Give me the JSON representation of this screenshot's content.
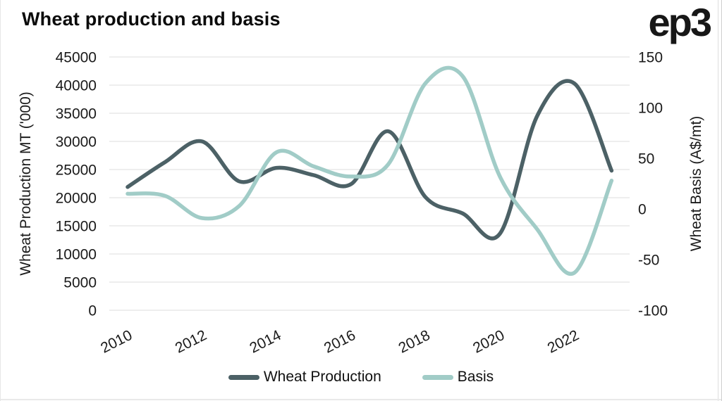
{
  "brand": {
    "logo": "ep3"
  },
  "chart_data": {
    "type": "line",
    "title": "Wheat production and basis",
    "x": [
      2010,
      2011,
      2012,
      2013,
      2014,
      2015,
      2016,
      2017,
      2018,
      2019,
      2020,
      2021,
      2022,
      2023
    ],
    "x_tick_years": [
      2010,
      2012,
      2014,
      2016,
      2018,
      2020,
      2022
    ],
    "left_axis": {
      "label": "Wheat Production MT ('000)",
      "min": 0,
      "max": 45000,
      "ticks": [
        45000,
        40000,
        35000,
        30000,
        25000,
        20000,
        15000,
        10000,
        5000,
        0
      ]
    },
    "right_axis": {
      "label": "Wheat Basis (A$/mt)",
      "min": -100,
      "max": 150,
      "ticks": [
        150,
        100,
        50,
        0,
        -50,
        -100
      ]
    },
    "grid": true,
    "legend_position": "bottom",
    "series": [
      {
        "name": "Wheat Production",
        "axis": "left",
        "color": "#4c6166",
        "values": [
          21900,
          26300,
          30000,
          22900,
          25300,
          24000,
          22400,
          31800,
          20100,
          17200,
          13600,
          34500,
          40300,
          24800
        ]
      },
      {
        "name": "Basis",
        "axis": "right",
        "color": "#a1ccc7",
        "values": [
          15,
          13,
          -9,
          3,
          56,
          42,
          32,
          44,
          124,
          131,
          32,
          -20,
          -63,
          28
        ]
      }
    ],
    "colors": {
      "grid": "#e4e4e4",
      "text": "#1a1a1a"
    }
  }
}
